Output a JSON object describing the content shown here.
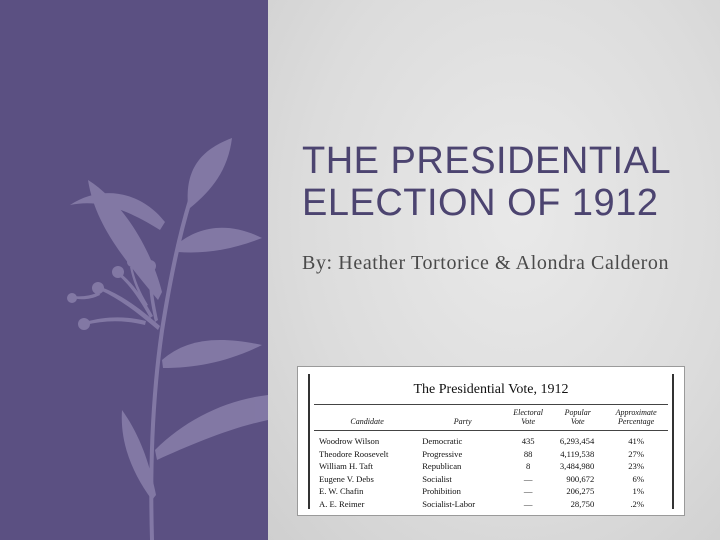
{
  "slide": {
    "title_lines": [
      "THE PRESIDENTIAL",
      "ELECTION OF 1912"
    ],
    "subtitle": "By: Heather Tortorice & Alondra Calderon"
  },
  "colors": {
    "side_panel": "#5b5082",
    "title_text": "#4c4470",
    "background": "#dcdcdc"
  },
  "decoration": {
    "icon": "botanical-silhouette"
  },
  "vote_table": {
    "caption": "The Presidential Vote, 1912",
    "headers": {
      "candidate": "Candidate",
      "party": "Party",
      "electoral_vote": [
        "Electoral",
        "Vote"
      ],
      "popular_vote": [
        "Popular",
        "Vote"
      ],
      "percentage": [
        "Approximate",
        "Percentage"
      ]
    },
    "rows": [
      {
        "candidate": "Woodrow Wilson",
        "party": "Democratic",
        "electoral": "435",
        "popular": "6,293,454",
        "percent": "41%"
      },
      {
        "candidate": "Theodore Roosevelt",
        "party": "Progressive",
        "electoral": "88",
        "popular": "4,119,538",
        "percent": "27%"
      },
      {
        "candidate": "William H. Taft",
        "party": "Republican",
        "electoral": "8",
        "popular": "3,484,980",
        "percent": "23%"
      },
      {
        "candidate": "Eugene V. Debs",
        "party": "Socialist",
        "electoral": "—",
        "popular": "900,672",
        "percent": "6%"
      },
      {
        "candidate": "E. W. Chafin",
        "party": "Prohibition",
        "electoral": "—",
        "popular": "206,275",
        "percent": "1%"
      },
      {
        "candidate": "A. E. Reimer",
        "party": "Socialist-Labor",
        "electoral": "—",
        "popular": "28,750",
        "percent": ".2%"
      }
    ]
  }
}
